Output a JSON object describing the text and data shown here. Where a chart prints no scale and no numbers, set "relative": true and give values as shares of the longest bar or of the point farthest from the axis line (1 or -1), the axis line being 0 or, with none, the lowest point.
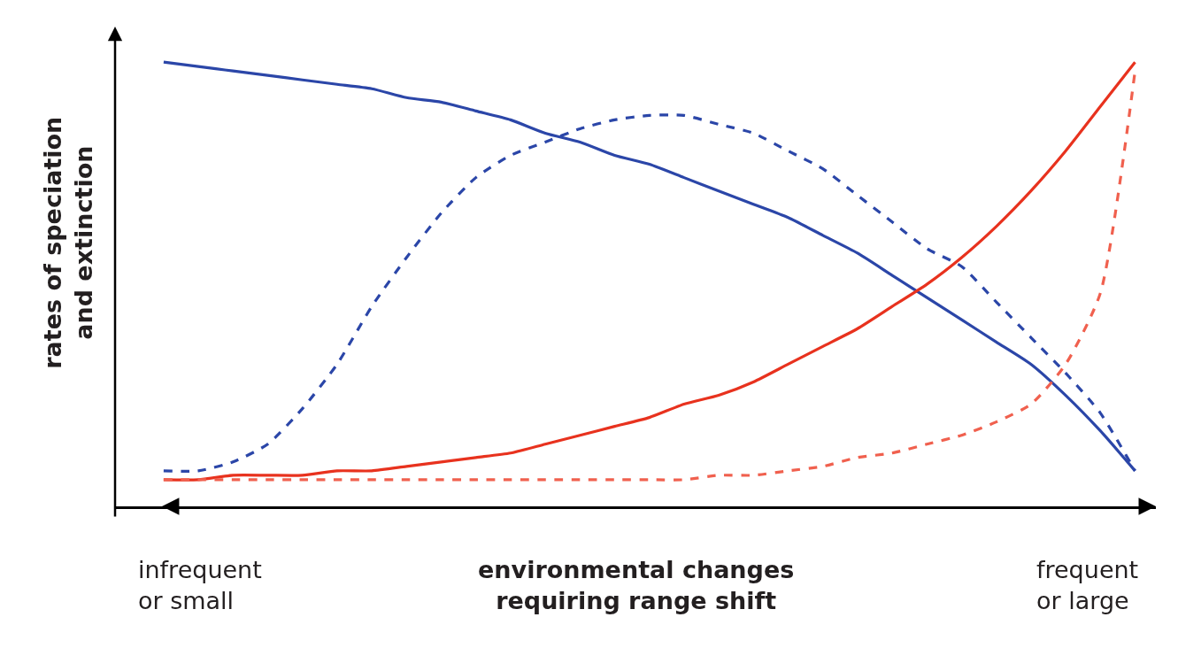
{
  "chart_data": {
    "type": "line",
    "relative": true,
    "xlabel": "environmental changes\nrequiring range shift",
    "ylabel": "rates of speciation\nand extinction",
    "categories": [
      null,
      null,
      null,
      null,
      null,
      null,
      null,
      null,
      null,
      null,
      null,
      null,
      null,
      null,
      null,
      null,
      null,
      null,
      null,
      null,
      null,
      null,
      null,
      null,
      null,
      null,
      null,
      null,
      null
    ],
    "series": [
      {
        "color": "#2b46a8",
        "line_style": "solid",
        "values": [
          1.0,
          0.99,
          0.98,
          0.97,
          0.96,
          0.95,
          0.94,
          0.92,
          0.91,
          0.89,
          0.87,
          0.84,
          0.82,
          0.79,
          0.77,
          0.74,
          0.71,
          0.68,
          0.65,
          0.61,
          0.57,
          0.52,
          0.47,
          0.42,
          0.37,
          0.32,
          0.25,
          0.17,
          0.08
        ]
      },
      {
        "color": "#2b46a8",
        "line_style": "dashed",
        "values": [
          0.08,
          0.08,
          0.1,
          0.14,
          0.22,
          0.32,
          0.45,
          0.56,
          0.66,
          0.74,
          0.79,
          0.82,
          0.85,
          0.87,
          0.88,
          0.88,
          0.86,
          0.84,
          0.8,
          0.76,
          0.7,
          0.64,
          0.58,
          0.54,
          0.46,
          0.38,
          0.3,
          0.21,
          0.08
        ]
      },
      {
        "color": "#e8321e",
        "line_style": "solid",
        "values": [
          0.06,
          0.06,
          0.07,
          0.07,
          0.07,
          0.08,
          0.08,
          0.09,
          0.1,
          0.11,
          0.12,
          0.14,
          0.16,
          0.18,
          0.2,
          0.23,
          0.25,
          0.28,
          0.32,
          0.36,
          0.4,
          0.45,
          0.5,
          0.56,
          0.63,
          0.71,
          0.8,
          0.9,
          1.0
        ]
      },
      {
        "color": "#f0604e",
        "line_style": "dashed",
        "values": [
          0.06,
          0.06,
          0.06,
          0.06,
          0.06,
          0.06,
          0.06,
          0.06,
          0.06,
          0.06,
          0.06,
          0.06,
          0.06,
          0.06,
          0.06,
          0.06,
          0.07,
          0.07,
          0.08,
          0.09,
          0.11,
          0.12,
          0.14,
          0.16,
          0.19,
          0.23,
          0.32,
          0.48,
          0.98
        ]
      }
    ],
    "annotations": [
      "infrequent\nor small",
      "frequent\nor large"
    ],
    "tick_labels": false,
    "marker": "none"
  }
}
